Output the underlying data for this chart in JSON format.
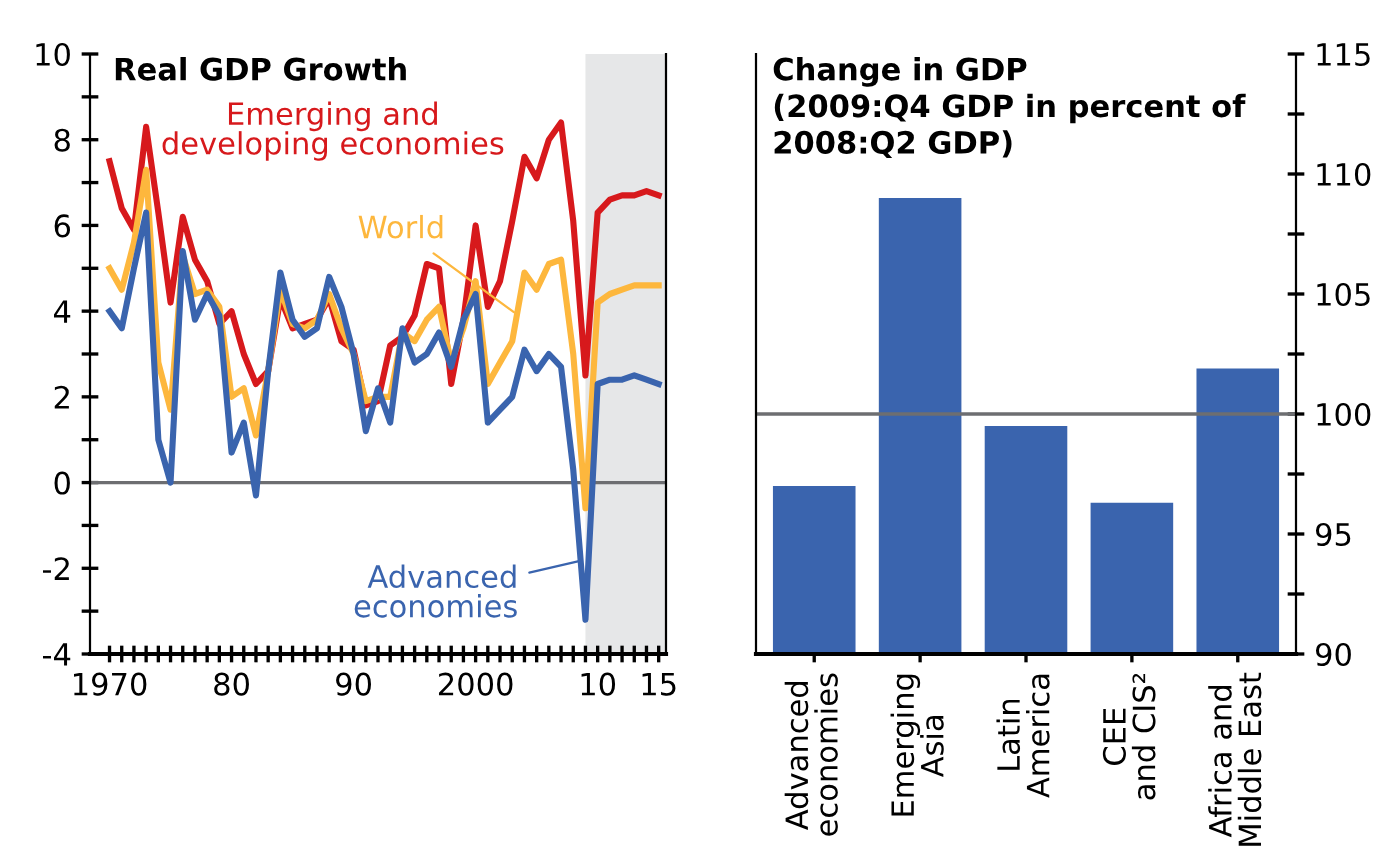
{
  "chart_data": [
    {
      "type": "line",
      "title": "Real GDP Growth",
      "x": [
        1970,
        1971,
        1972,
        1973,
        1974,
        1975,
        1976,
        1977,
        1978,
        1979,
        1980,
        1981,
        1982,
        1983,
        1984,
        1985,
        1986,
        1987,
        1988,
        1989,
        1990,
        1991,
        1992,
        1993,
        1994,
        1995,
        1996,
        1997,
        1998,
        1999,
        2000,
        2001,
        2002,
        2003,
        2004,
        2005,
        2006,
        2007,
        2008,
        2009,
        2010,
        2011,
        2012,
        2013,
        2014,
        2015
      ],
      "series": [
        {
          "name": "Emerging and\ndeveloping economies",
          "color": "#d7191c",
          "values": [
            7.5,
            6.4,
            5.9,
            8.3,
            6.3,
            4.2,
            6.2,
            5.2,
            4.7,
            3.7,
            4.0,
            3.0,
            2.3,
            2.6,
            4.3,
            3.6,
            3.7,
            3.8,
            4.3,
            3.3,
            3.1,
            1.8,
            1.9,
            3.2,
            3.4,
            3.9,
            5.1,
            5.0,
            2.3,
            3.8,
            6.0,
            4.1,
            4.7,
            6.1,
            7.6,
            7.1,
            8.0,
            8.4,
            6.1,
            2.5,
            6.3,
            6.6,
            6.7,
            6.7,
            6.8,
            6.7
          ]
        },
        {
          "name": "World",
          "color": "#fdb73d",
          "values": [
            5.0,
            4.5,
            5.6,
            7.3,
            2.8,
            1.7,
            5.3,
            4.4,
            4.5,
            4.1,
            2.0,
            2.2,
            1.1,
            2.6,
            4.5,
            3.7,
            3.6,
            3.8,
            4.4,
            3.6,
            3.0,
            1.9,
            2.0,
            2.0,
            3.5,
            3.3,
            3.8,
            4.1,
            2.8,
            3.6,
            4.7,
            2.3,
            2.8,
            3.3,
            4.9,
            4.5,
            5.1,
            5.2,
            3.0,
            -0.6,
            4.2,
            4.4,
            4.5,
            4.6,
            4.6,
            4.6
          ]
        },
        {
          "name": "Advanced\neconomies",
          "color": "#3a64ae",
          "values": [
            4.0,
            3.6,
            5.0,
            6.3,
            1.0,
            0.0,
            5.4,
            3.8,
            4.4,
            3.9,
            0.7,
            1.4,
            -0.3,
            2.6,
            4.9,
            3.8,
            3.4,
            3.6,
            4.8,
            4.1,
            3.0,
            1.2,
            2.2,
            1.4,
            3.6,
            2.8,
            3.0,
            3.5,
            2.7,
            3.8,
            4.4,
            1.4,
            1.7,
            2.0,
            3.1,
            2.6,
            3.0,
            2.7,
            0.3,
            -3.2,
            2.3,
            2.4,
            2.4,
            2.5,
            2.4,
            2.3
          ]
        }
      ],
      "xlim": [
        1968.4,
        2015.6
      ],
      "ylim": [
        -4,
        10
      ],
      "xticks": [
        {
          "value": 1970,
          "label": "1970"
        },
        {
          "value": 1971,
          "label": null
        },
        {
          "value": 1972,
          "label": null
        },
        {
          "value": 1973,
          "label": null
        },
        {
          "value": 1974,
          "label": null
        },
        {
          "value": 1975,
          "label": null
        },
        {
          "value": 1976,
          "label": null
        },
        {
          "value": 1977,
          "label": null
        },
        {
          "value": 1978,
          "label": null
        },
        {
          "value": 1979,
          "label": null
        },
        {
          "value": 1980,
          "label": "80"
        },
        {
          "value": 1981,
          "label": null
        },
        {
          "value": 1982,
          "label": null
        },
        {
          "value": 1983,
          "label": null
        },
        {
          "value": 1984,
          "label": null
        },
        {
          "value": 1985,
          "label": null
        },
        {
          "value": 1986,
          "label": null
        },
        {
          "value": 1987,
          "label": null
        },
        {
          "value": 1988,
          "label": null
        },
        {
          "value": 1989,
          "label": null
        },
        {
          "value": 1990,
          "label": "90"
        },
        {
          "value": 1991,
          "label": null
        },
        {
          "value": 1992,
          "label": null
        },
        {
          "value": 1993,
          "label": null
        },
        {
          "value": 1994,
          "label": null
        },
        {
          "value": 1995,
          "label": null
        },
        {
          "value": 1996,
          "label": null
        },
        {
          "value": 1997,
          "label": null
        },
        {
          "value": 1998,
          "label": null
        },
        {
          "value": 1999,
          "label": null
        },
        {
          "value": 2000,
          "label": "2000"
        },
        {
          "value": 2001,
          "label": null
        },
        {
          "value": 2002,
          "label": null
        },
        {
          "value": 2003,
          "label": null
        },
        {
          "value": 2004,
          "label": null
        },
        {
          "value": 2005,
          "label": null
        },
        {
          "value": 2006,
          "label": null
        },
        {
          "value": 2007,
          "label": null
        },
        {
          "value": 2008,
          "label": null
        },
        {
          "value": 2009,
          "label": null
        },
        {
          "value": 2010,
          "label": "10"
        },
        {
          "value": 2011,
          "label": null
        },
        {
          "value": 2012,
          "label": null
        },
        {
          "value": 2013,
          "label": null
        },
        {
          "value": 2014,
          "label": null
        },
        {
          "value": 2015,
          "label": "15"
        }
      ],
      "yticks": [
        -4,
        {
          "value": -3,
          "label": null
        },
        -2,
        {
          "value": -1,
          "label": null
        },
        0,
        {
          "value": 1,
          "label": null
        },
        2,
        {
          "value": 3,
          "label": null
        },
        4,
        {
          "value": 5,
          "label": null
        },
        6,
        {
          "value": 7,
          "label": null
        },
        8,
        {
          "value": 9,
          "label": null
        },
        10
      ],
      "ref_lines": [
        {
          "axis": "y",
          "value": 0,
          "color": "#6d6e71"
        }
      ],
      "bands": [
        {
          "axis": "x",
          "from": 2009,
          "to": 2015.6,
          "color": "#e6e7e8"
        }
      ],
      "grid": false,
      "marker": "none",
      "line_style": "solid"
    },
    {
      "type": "bar",
      "title": "Change in GDP\n(2009:Q4 GDP in percent of\n2008:Q2 GDP)",
      "categories": [
        "Advanced\neconomies",
        "Emerging\nAsia",
        "Latin\nAmerica",
        "CEE\nand CIS²",
        "Africa and\nMiddle East"
      ],
      "series": [
        {
          "color": "#3a64ae",
          "axis": "y2",
          "values": [
            97.0,
            109.0,
            99.5,
            96.3,
            101.9
          ]
        }
      ],
      "y2lim": [
        90,
        115
      ],
      "y2ticks": [
        90,
        {
          "value": 92.5,
          "label": null
        },
        95,
        {
          "value": 97.5,
          "label": null
        },
        100,
        {
          "value": 102.5,
          "label": null
        },
        105,
        {
          "value": 107.5,
          "label": null
        },
        110,
        {
          "value": 112.5,
          "label": null
        },
        115
      ],
      "ref_lines": [
        {
          "axis": "y2",
          "value": 100,
          "color": "#6d6e71"
        }
      ],
      "grid": false
    }
  ]
}
